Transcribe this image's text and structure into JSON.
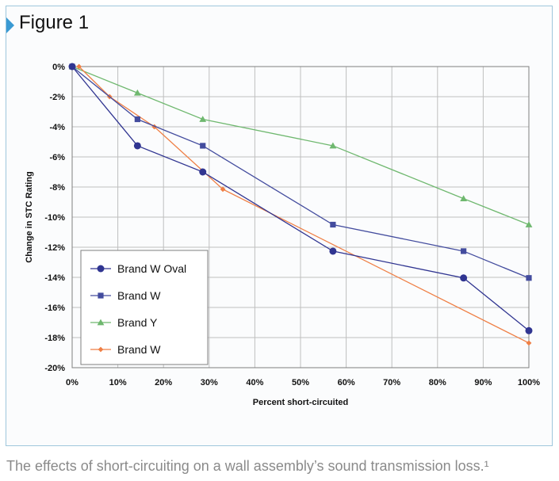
{
  "figure": {
    "title": "Figure 1",
    "caption": "The effects of short-circuiting on a wall assembly’s sound transmission loss.¹"
  },
  "colors": {
    "frame_border": "#9fc7dc",
    "arrow": "#3a9ad3",
    "grid": "#bfbfbf",
    "brand_w_oval": "#303591",
    "brand_w_square": "#434c9e",
    "brand_y": "#6fb86f",
    "brand_w_diamond": "#ef7f45"
  },
  "chart_data": {
    "type": "line",
    "xlabel": "Percent short-circuited",
    "ylabel": "Change in STC Rating",
    "xlim": [
      0,
      100
    ],
    "ylim": [
      -20,
      0
    ],
    "x_ticks": [
      "0%",
      "10%",
      "20%",
      "30%",
      "40%",
      "50%",
      "60%",
      "70%",
      "80%",
      "90%",
      "100%"
    ],
    "y_ticks": [
      "0%",
      "-2%",
      "-4%",
      "-6%",
      "-8%",
      "-10%",
      "-12%",
      "-14%",
      "-16%",
      "-18%",
      "-20%"
    ],
    "grid": true,
    "legend_position": "bottom-left",
    "series": [
      {
        "name": "Brand W Oval",
        "marker": "circle",
        "color": "#303591",
        "x": [
          0,
          14.3,
          28.6,
          57.1,
          85.7,
          100
        ],
        "y": [
          0,
          -5.26,
          -7.0,
          -12.26,
          -14.04,
          -17.54
        ]
      },
      {
        "name": "Brand W",
        "marker": "square",
        "color": "#434c9e",
        "x": [
          0,
          14.3,
          28.6,
          57.1,
          85.7,
          100
        ],
        "y": [
          0,
          -3.5,
          -5.26,
          -10.5,
          -12.26,
          -14.04
        ]
      },
      {
        "name": "Brand Y",
        "marker": "triangle",
        "color": "#6fb86f",
        "x": [
          0,
          14.3,
          28.6,
          57.1,
          85.7,
          100
        ],
        "y": [
          0,
          -1.75,
          -3.5,
          -5.26,
          -8.77,
          -10.5
        ]
      },
      {
        "name": "Brand W",
        "marker": "diamond",
        "color": "#ef7f45",
        "x": [
          1.5,
          8.2,
          18,
          33,
          100
        ],
        "y": [
          0,
          -2.0,
          -4.0,
          -8.15,
          -18.36
        ]
      }
    ]
  }
}
